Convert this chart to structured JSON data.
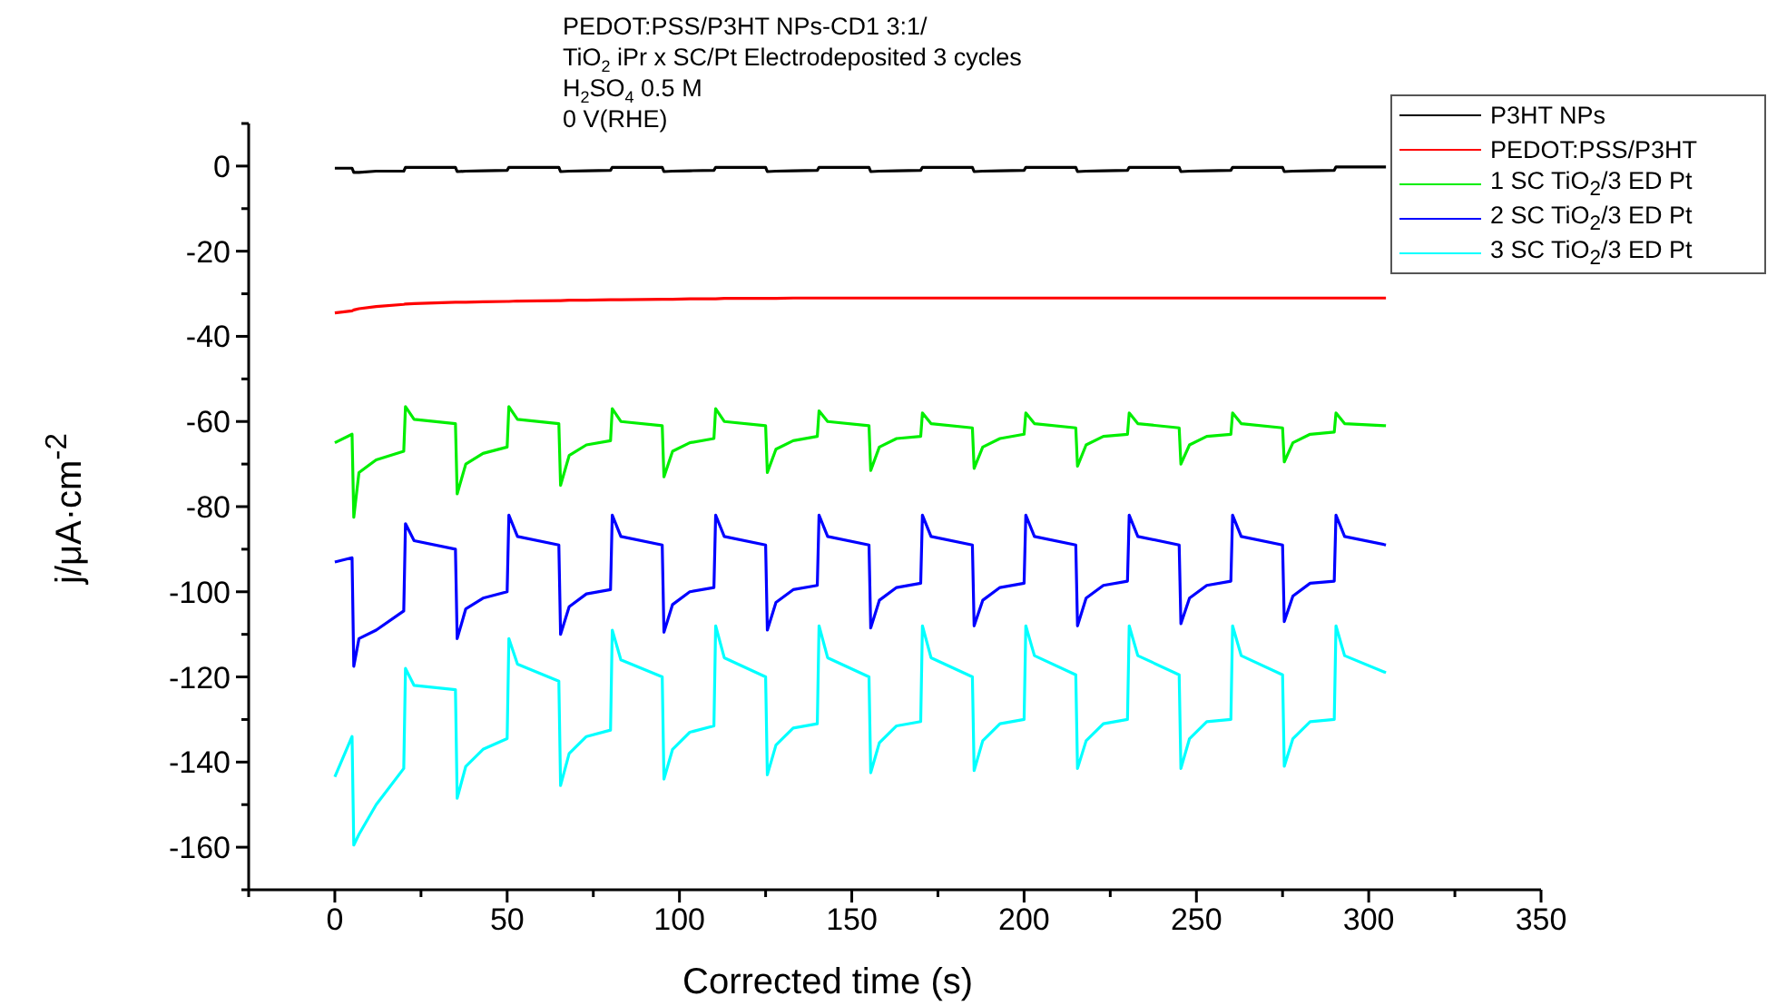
{
  "chart_data": {
    "type": "line",
    "title": "PEDOT:PSS/P3HT NPs-CD1 3:1/\nTiO$_{2}$ iPr x SC/Pt Electrodeposited 3 cycles\nH$_{2}$SO$_{4}$ 0.5 M\n0 V(RHE)",
    "xlabel": "Corrected time (s)",
    "ylabel": "j/μA·cm$^{-2}$",
    "x": [
      0,
      5,
      5.5,
      7,
      12,
      20,
      20.5,
      23,
      35,
      35.5,
      38,
      43,
      50,
      50.5,
      53,
      65,
      65.5,
      68,
      73,
      80,
      80.5,
      83,
      95,
      95.5,
      98,
      103,
      110,
      110.5,
      113,
      125,
      125.5,
      128,
      133,
      140,
      140.5,
      143,
      155,
      155.5,
      158,
      163,
      170,
      170.5,
      173,
      185,
      185.5,
      188,
      193,
      200,
      200.5,
      203,
      215,
      215.5,
      218,
      223,
      230,
      230.5,
      233,
      245,
      245.5,
      248,
      253,
      260,
      260.5,
      263,
      275,
      275.5,
      278,
      283,
      290,
      290.5,
      293,
      305
    ],
    "series": [
      {
        "name": "P3HT NPs",
        "color": "#000000",
        "values": [
          -0.5,
          -0.5,
          -1.5,
          -1.5,
          -1.2,
          -1.2,
          -0.3,
          -0.3,
          -0.3,
          -1.3,
          -1.2,
          -1.1,
          -1,
          -0.3,
          -0.3,
          -0.3,
          -1.3,
          -1.2,
          -1.1,
          -1,
          -0.3,
          -0.3,
          -0.3,
          -1.3,
          -1.2,
          -1.1,
          -1,
          -0.3,
          -0.3,
          -0.3,
          -1.3,
          -1.2,
          -1.1,
          -1,
          -0.3,
          -0.3,
          -0.3,
          -1.3,
          -1.2,
          -1.1,
          -1,
          -0.3,
          -0.3,
          -0.3,
          -1.3,
          -1.2,
          -1.1,
          -1,
          -0.3,
          -0.3,
          -0.3,
          -1.3,
          -1.2,
          -1.1,
          -1,
          -0.3,
          -0.3,
          -0.3,
          -1.3,
          -1.2,
          -1.1,
          -1,
          -0.3,
          -0.3,
          -0.3,
          -1.3,
          -1.2,
          -1.1,
          -1,
          -0.2,
          -0.2,
          -0.2
        ]
      },
      {
        "name": "PEDOT:PSS/P3HT",
        "color": "#ff0000",
        "values": [
          -34.5,
          -34,
          -33.8,
          -33.5,
          -33,
          -32.5,
          -32.4,
          -32.3,
          -32,
          -32,
          -32,
          -31.9,
          -31.8,
          -31.8,
          -31.7,
          -31.6,
          -31.6,
          -31.5,
          -31.5,
          -31.4,
          -31.4,
          -31.4,
          -31.3,
          -31.3,
          -31.3,
          -31.2,
          -31.2,
          -31.2,
          -31.1,
          -31.1,
          -31.1,
          -31.1,
          -31,
          -31,
          -31,
          -31,
          -31,
          -31,
          -31,
          -31,
          -31,
          -31,
          -31,
          -31,
          -31,
          -31,
          -31,
          -31,
          -31,
          -31,
          -31,
          -31,
          -31,
          -31,
          -31,
          -31,
          -31,
          -31,
          -31,
          -31,
          -31,
          -31,
          -31,
          -31,
          -31,
          -31,
          -31,
          -31,
          -31,
          -31,
          -31,
          -31
        ]
      },
      {
        "name": "1 SC TiO$_{2}$/3 ED Pt",
        "color": "#00ee00",
        "values": [
          -65,
          -63,
          -82.5,
          -72,
          -69,
          -67,
          -56.5,
          -59.5,
          -60.5,
          -77,
          -70,
          -67.5,
          -66,
          -56.5,
          -59.5,
          -60.5,
          -75,
          -68,
          -65.5,
          -64.5,
          -57,
          -60,
          -61,
          -73,
          -67,
          -65,
          -64,
          -57,
          -60,
          -61,
          -72,
          -66.5,
          -64.5,
          -63.5,
          -57.5,
          -60,
          -61,
          -71.5,
          -66,
          -64,
          -63.5,
          -58,
          -60.5,
          -61.5,
          -71,
          -66,
          -64,
          -63,
          -58,
          -60.5,
          -61.5,
          -70.5,
          -65.5,
          -63.5,
          -63,
          -58,
          -60.5,
          -61.5,
          -70,
          -65.5,
          -63.5,
          -63,
          -58,
          -60.5,
          -61.5,
          -69.5,
          -65,
          -63,
          -62.5,
          -58,
          -60.5,
          -61
        ]
      },
      {
        "name": "2 SC TiO$_{2}$/3 ED Pt",
        "color": "#0000ff",
        "values": [
          -93,
          -92,
          -117.5,
          -111,
          -109,
          -104.5,
          -84,
          -88,
          -90,
          -111,
          -104,
          -101.5,
          -100,
          -82,
          -87,
          -89,
          -110,
          -103.5,
          -100.5,
          -99.5,
          -82,
          -87,
          -89,
          -109.5,
          -103,
          -100,
          -99,
          -82,
          -87,
          -89,
          -109,
          -102.5,
          -99.5,
          -98.5,
          -82,
          -87,
          -89,
          -108.5,
          -102,
          -99,
          -98,
          -82,
          -87,
          -89,
          -108,
          -102,
          -99,
          -98,
          -82,
          -87,
          -89,
          -108,
          -101.5,
          -98.5,
          -97.5,
          -82,
          -87,
          -89,
          -107.5,
          -101.5,
          -98.5,
          -97.5,
          -82,
          -87,
          -89,
          -107,
          -101,
          -98,
          -97.5,
          -82,
          -87,
          -89
        ]
      },
      {
        "name": "3 SC TiO$_{2}$/3 ED Pt",
        "color": "#00ffff",
        "values": [
          -143.5,
          -134,
          -159.5,
          -157,
          -150,
          -141.5,
          -118,
          -122,
          -123,
          -148.5,
          -141,
          -137,
          -134.5,
          -111,
          -117,
          -121,
          -145.5,
          -138,
          -134,
          -132.5,
          -109,
          -116,
          -120,
          -144,
          -137,
          -133,
          -131.5,
          -108,
          -115.5,
          -120,
          -143,
          -136,
          -132,
          -131,
          -108,
          -115.5,
          -120,
          -142.5,
          -135.5,
          -131.5,
          -130.5,
          -108,
          -115.5,
          -120,
          -142,
          -135,
          -131,
          -130,
          -108,
          -115,
          -119.5,
          -141.5,
          -135,
          -131,
          -130,
          -108,
          -115,
          -119.5,
          -141.5,
          -134.5,
          -130.5,
          -130,
          -108,
          -115,
          -119.5,
          -141,
          -134.5,
          -130.5,
          -130,
          -108,
          -115,
          -119
        ]
      }
    ],
    "xlim": [
      -25,
      350
    ],
    "xticks": [
      {
        "value": -25,
        "label": null
      },
      0,
      {
        "value": 25,
        "label": null
      },
      50,
      {
        "value": 75,
        "label": null
      },
      100,
      {
        "value": 125,
        "label": null
      },
      150,
      {
        "value": 175,
        "label": null
      },
      200,
      {
        "value": 225,
        "label": null
      },
      250,
      {
        "value": 275,
        "label": null
      },
      300,
      {
        "value": 325,
        "label": null
      },
      350
    ],
    "ylim": [
      -170,
      10
    ],
    "yticks": [
      {
        "value": -170,
        "label": null
      },
      -160,
      {
        "value": -150,
        "label": null
      },
      -140,
      {
        "value": -130,
        "label": null
      },
      -120,
      {
        "value": -110,
        "label": null
      },
      -100,
      {
        "value": -90,
        "label": null
      },
      -80,
      {
        "value": -70,
        "label": null
      },
      -60,
      {
        "value": -50,
        "label": null
      },
      -40,
      {
        "value": -30,
        "label": null
      },
      -20,
      {
        "value": -10,
        "label": null
      },
      0,
      {
        "value": 10,
        "label": null
      }
    ],
    "legend": "top right",
    "grid": false,
    "marker": "none",
    "line_style": "solid"
  }
}
